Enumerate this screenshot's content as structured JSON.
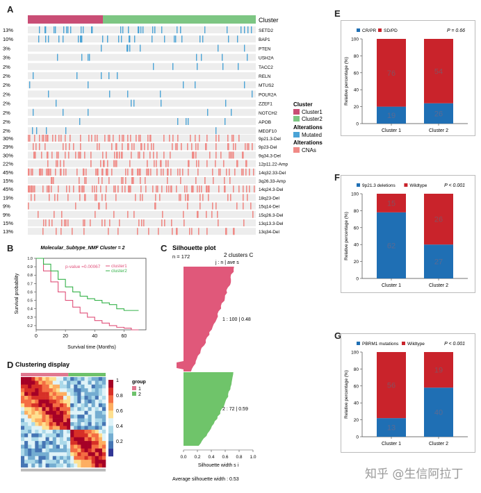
{
  "panels": {
    "A": {
      "letter": "A",
      "cluster_label": "Cluster",
      "mutation_genes": [
        {
          "pct": "13%",
          "gene": "SETD2"
        },
        {
          "pct": "10%",
          "gene": "BAP1"
        },
        {
          "pct": "3%",
          "gene": "PTEN"
        },
        {
          "pct": "3%",
          "gene": "USH2A"
        },
        {
          "pct": "2%",
          "gene": "TACC2"
        },
        {
          "pct": "2%",
          "gene": "RELN"
        },
        {
          "pct": "2%",
          "gene": "MTUS2"
        },
        {
          "pct": "2%",
          "gene": "POLR2A"
        },
        {
          "pct": "2%",
          "gene": "ZZEF1"
        },
        {
          "pct": "2%",
          "gene": "NOTCH2"
        },
        {
          "pct": "2%",
          "gene": "APOB"
        },
        {
          "pct": "2%",
          "gene": "MEGF10"
        }
      ],
      "cna_rows": [
        {
          "pct": "30%",
          "gene": "9p21.3-Del"
        },
        {
          "pct": "29%",
          "gene": "9p23-Del"
        },
        {
          "pct": "30%",
          "gene": "9q34.3-Del"
        },
        {
          "pct": "22%",
          "gene": "12p11.22-Amp"
        },
        {
          "pct": "45%",
          "gene": "14q32.33-Del"
        },
        {
          "pct": "15%",
          "gene": "3q26.33-Amp"
        },
        {
          "pct": "45%",
          "gene": "14q24.3-Del"
        },
        {
          "pct": "19%",
          "gene": "18q23-Del"
        },
        {
          "pct": "9%",
          "gene": "15q14-Del"
        },
        {
          "pct": "9%",
          "gene": "15q26.3-Del"
        },
        {
          "pct": "15%",
          "gene": "13q13.3-Del"
        },
        {
          "pct": "13%",
          "gene": "13q34-Del"
        }
      ],
      "legend": {
        "cluster_title": "Cluster",
        "cluster1": "Cluster1",
        "cluster2": "Cluster2",
        "alt_title1": "Alterations",
        "mutated": "Mutated",
        "alt_title2": "Alterations",
        "cnas": "CNAs"
      },
      "colors": {
        "cluster1": "#c94d75",
        "cluster2": "#7dc683",
        "mutated": "#4aa3d6",
        "cna": "#f08a86",
        "bg": "#ededed"
      }
    },
    "B": {
      "letter": "B",
      "title": "Molecular_Subtype_NMF Cluster = 2",
      "pvalue": "p-value =0.00067",
      "legend": [
        "cluster1",
        "cluster2"
      ],
      "ylabel": "Survival probability",
      "xlabel": "Survival time (Months)",
      "yticks": [
        "1.0",
        "0.9",
        "0.8",
        "0.7",
        "0.6",
        "0.5",
        "0.4",
        "0.3",
        "0.2"
      ],
      "xticks": [
        "0",
        "20",
        "40",
        "60"
      ],
      "colors": {
        "cluster1": "#e0507a",
        "cluster2": "#35b24a"
      }
    },
    "C": {
      "letter": "C",
      "title": "Silhouette plot",
      "n_label": "n = 172",
      "clusters_header": "2 clusters  C",
      "clusters_sub": "j",
      "col_header": "j :  n",
      "col_header2": " | ave",
      "col_header3": " s",
      "row1": "1 :  100  |  0.48",
      "row2": "2 :  72  |  0.59",
      "xlabel": "Silhouette width s",
      "xlabel_sub": "i",
      "avg": "Average silhouette width :  0.53",
      "xticks": [
        "0.0",
        "0.2",
        "0.4",
        "0.6",
        "0.8",
        "1.0"
      ],
      "colors": {
        "c1": "#e0587a",
        "c2": "#6fc46a"
      }
    },
    "D": {
      "letter": "D",
      "title": "Clustering display",
      "legend_ticks": [
        "1",
        "0.8",
        "0.6",
        "0.4",
        "0.2"
      ],
      "group_title": "group",
      "group1": "1",
      "group2": "2"
    },
    "E": {
      "letter": "E",
      "legend1": "CR/PR",
      "legend2": "SD/PD",
      "pvalue": "P = 0.66",
      "ylabel": "Relative percentage (%)",
      "yticks": [
        "100",
        "80",
        "60",
        "40",
        "20",
        "0"
      ],
      "categories": [
        "Cluster 1",
        "Cluster 2"
      ],
      "bottom_values": [
        20,
        24
      ],
      "bottom_labels": [
        "19",
        "26"
      ],
      "top_labels": [
        "76",
        "54"
      ],
      "colors": {
        "bottom": "#1f6fb4",
        "top": "#c9232b"
      }
    },
    "F": {
      "letter": "F",
      "legend1": "9p21.3 deletions",
      "legend2": "Wildtype",
      "pvalue": "P  < 0.001",
      "ylabel": "Relative percentage (%)",
      "yticks": [
        "100",
        "80",
        "60",
        "40",
        "20",
        "0"
      ],
      "categories": [
        "Cluster 1",
        "Cluster 2"
      ],
      "bottom_values": [
        78,
        40
      ],
      "bottom_labels": [
        "62",
        "27"
      ],
      "top_labels": [
        "15",
        "26"
      ],
      "colors": {
        "bottom": "#1f6fb4",
        "top": "#c9232b"
      }
    },
    "G": {
      "letter": "G",
      "legend1": "PBRM1 mutations",
      "legend2": "Wildtype",
      "pvalue": "P  < 0.001",
      "ylabel": "Relative percentage (%)",
      "yticks": [
        "100",
        "80",
        "60",
        "40",
        "20",
        "0"
      ],
      "categories": [
        "Cluster 1",
        "Cluster 2"
      ],
      "bottom_values": [
        22,
        58
      ],
      "bottom_labels": [
        "13",
        "40"
      ],
      "top_labels": [
        "56",
        "19"
      ],
      "colors": {
        "bottom": "#1f6fb4",
        "top": "#c9232b"
      }
    }
  },
  "watermark": "知乎 @生信阿拉丁",
  "chart_data": [
    {
      "type": "bar",
      "title": "E",
      "categories": [
        "Cluster 1",
        "Cluster 2"
      ],
      "series": [
        {
          "name": "CR/PR",
          "values": [
            20,
            24
          ]
        },
        {
          "name": "SD/PD",
          "values": [
            80,
            76
          ]
        }
      ],
      "ylabel": "Relative percentage (%)",
      "ylim": [
        0,
        100
      ]
    },
    {
      "type": "bar",
      "title": "F",
      "categories": [
        "Cluster 1",
        "Cluster 2"
      ],
      "series": [
        {
          "name": "9p21.3 deletions",
          "values": [
            78,
            40
          ]
        },
        {
          "name": "Wildtype",
          "values": [
            22,
            60
          ]
        }
      ],
      "ylabel": "Relative percentage (%)",
      "ylim": [
        0,
        100
      ]
    },
    {
      "type": "bar",
      "title": "G",
      "categories": [
        "Cluster 1",
        "Cluster 2"
      ],
      "series": [
        {
          "name": "PBRM1 mutations",
          "values": [
            22,
            58
          ]
        },
        {
          "name": "Wildtype",
          "values": [
            78,
            42
          ]
        }
      ],
      "ylabel": "Relative percentage (%)",
      "ylim": [
        0,
        100
      ]
    },
    {
      "type": "line",
      "title": "Molecular_Subtype_NMF Cluster = 2",
      "x": [
        0,
        5,
        10,
        15,
        20,
        25,
        30,
        35,
        40,
        45,
        50,
        55,
        60,
        65,
        70
      ],
      "series": [
        {
          "name": "cluster1",
          "values": [
            1.0,
            0.85,
            0.72,
            0.6,
            0.5,
            0.42,
            0.35,
            0.3,
            0.26,
            0.23,
            0.2,
            0.18,
            0.17,
            0.15,
            0.15
          ]
        },
        {
          "name": "cluster2",
          "values": [
            1.0,
            0.93,
            0.85,
            0.75,
            0.66,
            0.6,
            0.55,
            0.52,
            0.5,
            0.47,
            0.45,
            0.4,
            0.38,
            0.38,
            0.38
          ]
        }
      ],
      "xlabel": "Survival time (Months)",
      "ylabel": "Survival probability",
      "ylim": [
        0.15,
        1.0
      ]
    }
  ]
}
